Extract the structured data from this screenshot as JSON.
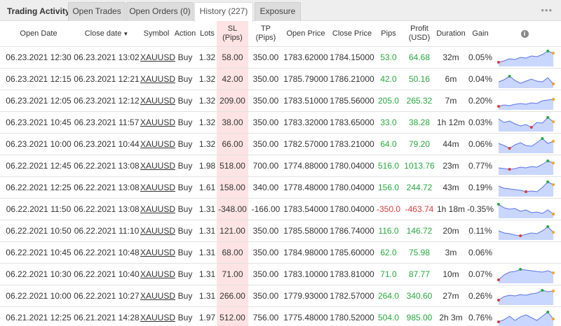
{
  "tabs": {
    "title": "Trading Activity",
    "items": [
      {
        "label": "Open Trades"
      },
      {
        "label": "Open Orders (0)"
      },
      {
        "label": "History (227)"
      },
      {
        "label": "Exposure"
      }
    ],
    "menu": "•••"
  },
  "columns": {
    "open_date": "Open Date",
    "close_date": "Close date",
    "sort_arrow": "▼",
    "symbol": "Symbol",
    "action": "Action",
    "lots": "Lots",
    "sl_1": "SL",
    "sl_2": "(Pips)",
    "tp_1": "TP",
    "tp_2": "(Pips)",
    "open_price": "Open Price",
    "close_price": "Close Price",
    "pips": "Pips",
    "profit_1": "Profit",
    "profit_2": "(USD)",
    "duration": "Duration",
    "gain": "Gain",
    "info": "i"
  },
  "colors": {
    "positive": "#27a83d",
    "negative": "#e03a3a",
    "sl_highlight": "#fde3e3",
    "spark_fill": "#c9d6ff",
    "spark_line": "#5c74e6"
  },
  "trades": [
    {
      "open_date": "06.23.2021 12:30",
      "close_date": "06.23.2021 13:02",
      "symbol": "XAUUSD",
      "action": "Buy",
      "lots": "1.32",
      "sl": "58.00",
      "tp": "350.00",
      "open_price": "1783.62000",
      "close_price": "1784.15000",
      "pips": "53.0",
      "profit": "64.68",
      "duration": "32m",
      "gain": "0.05%",
      "negative": false,
      "spark": [
        0.15,
        0.25,
        0.4,
        0.35,
        0.5,
        0.45,
        0.6,
        0.55,
        0.7,
        0.95,
        0.8
      ]
    },
    {
      "open_date": "06.23.2021 12:15",
      "close_date": "06.23.2021 12:21",
      "symbol": "XAUUSD",
      "action": "Buy",
      "lots": "1.32",
      "sl": "42.00",
      "tp": "350.00",
      "open_price": "1785.79000",
      "close_price": "1786.21000",
      "pips": "42.0",
      "profit": "50.16",
      "duration": "6m",
      "gain": "0.04%",
      "negative": false,
      "spark": [
        0.3,
        0.45,
        0.7,
        0.4,
        0.2,
        0.35,
        0.5,
        0.35,
        0.3,
        0.6,
        0.15
      ]
    },
    {
      "open_date": "06.23.2021 12:05",
      "close_date": "06.23.2021 12:12",
      "symbol": "XAUUSD",
      "action": "Buy",
      "lots": "1.32",
      "sl": "209.00",
      "tp": "350.00",
      "open_price": "1783.51000",
      "close_price": "1785.56000",
      "pips": "205.0",
      "profit": "265.32",
      "duration": "7m",
      "gain": "0.20%",
      "negative": false,
      "spark": [
        0.1,
        0.2,
        0.15,
        0.25,
        0.3,
        0.25,
        0.35,
        0.3,
        0.5,
        0.55,
        0.6
      ]
    },
    {
      "open_date": "06.23.2021 10:45",
      "close_date": "06.23.2021 11:57",
      "symbol": "XAUUSD",
      "action": "Buy",
      "lots": "1.32",
      "sl": "38.00",
      "tp": "350.00",
      "open_price": "1783.32000",
      "close_price": "1783.65000",
      "pips": "33.0",
      "profit": "38.28",
      "duration": "1h 12m",
      "gain": "0.03%",
      "negative": false,
      "spark": [
        0.75,
        0.5,
        0.6,
        0.4,
        0.25,
        0.35,
        0.15,
        0.5,
        0.45,
        0.85,
        0.55
      ]
    },
    {
      "open_date": "06.23.2021 10:00",
      "close_date": "06.23.2021 10:44",
      "symbol": "XAUUSD",
      "action": "Buy",
      "lots": "1.32",
      "sl": "66.00",
      "tp": "350.00",
      "open_price": "1782.57000",
      "close_price": "1783.21000",
      "pips": "64.0",
      "profit": "79.20",
      "duration": "44m",
      "gain": "0.06%",
      "negative": false,
      "spark": [
        0.55,
        0.4,
        0.2,
        0.45,
        0.6,
        0.4,
        0.35,
        0.6,
        0.9,
        0.55,
        0.7
      ]
    },
    {
      "open_date": "06.22.2021 12:45",
      "close_date": "06.22.2021 13:08",
      "symbol": "XAUUSD",
      "action": "Buy",
      "lots": "1.98",
      "sl": "518.00",
      "tp": "700.00",
      "open_price": "1774.88000",
      "close_price": "1780.04000",
      "pips": "516.0",
      "profit": "1013.76",
      "duration": "23m",
      "gain": "0.77%",
      "negative": false,
      "spark": [
        0.35,
        0.3,
        0.25,
        0.3,
        0.4,
        0.35,
        0.45,
        0.4,
        0.6,
        0.85,
        0.7
      ]
    },
    {
      "open_date": "06.22.2021 12:25",
      "close_date": "06.22.2021 13:08",
      "symbol": "XAUUSD",
      "action": "Buy",
      "lots": "1.61",
      "sl": "158.00",
      "tp": "340.00",
      "open_price": "1778.48000",
      "close_price": "1780.04000",
      "pips": "156.0",
      "profit": "244.72",
      "duration": "43m",
      "gain": "0.19%",
      "negative": false,
      "spark": [
        0.6,
        0.45,
        0.4,
        0.35,
        0.3,
        0.2,
        0.25,
        0.2,
        0.5,
        0.9,
        0.7
      ]
    },
    {
      "open_date": "06.22.2021 11:50",
      "close_date": "06.22.2021 13:08",
      "symbol": "XAUUSD",
      "action": "Buy",
      "lots": "1.31",
      "sl": "-348.00",
      "tp": "-166.00",
      "open_price": "1783.54000",
      "close_price": "1780.04000",
      "pips": "-350.0",
      "profit": "-463.74",
      "duration": "1h 18m",
      "gain": "-0.35%",
      "negative": true,
      "spark": [
        0.85,
        0.6,
        0.5,
        0.55,
        0.35,
        0.45,
        0.25,
        0.3,
        0.2,
        0.45,
        0.15
      ]
    },
    {
      "open_date": "06.22.2021 10:50",
      "close_date": "06.22.2021 11:10",
      "symbol": "XAUUSD",
      "action": "Buy",
      "lots": "1.31",
      "sl": "121.00",
      "tp": "350.00",
      "open_price": "1785.58000",
      "close_price": "1786.74000",
      "pips": "116.0",
      "profit": "146.72",
      "duration": "20m",
      "gain": "0.11%",
      "negative": false,
      "spark": [
        0.5,
        0.35,
        0.3,
        0.2,
        0.15,
        0.25,
        0.35,
        0.3,
        0.5,
        0.8,
        0.4
      ]
    },
    {
      "open_date": "06.22.2021 10:45",
      "close_date": "06.22.2021 10:48",
      "symbol": "XAUUSD",
      "action": "Buy",
      "lots": "1.31",
      "sl": "68.00",
      "tp": "350.00",
      "open_price": "1784.98000",
      "close_price": "1785.60000",
      "pips": "62.0",
      "profit": "75.98",
      "duration": "3m",
      "gain": "0.06%",
      "negative": false,
      "spark": []
    },
    {
      "open_date": "06.22.2021 10:30",
      "close_date": "06.22.2021 10:40",
      "symbol": "XAUUSD",
      "action": "Buy",
      "lots": "1.31",
      "sl": "71.00",
      "tp": "350.00",
      "open_price": "1783.10000",
      "close_price": "1783.81000",
      "pips": "71.0",
      "profit": "87.77",
      "duration": "10m",
      "gain": "0.07%",
      "negative": false,
      "spark": [
        0.1,
        0.45,
        0.65,
        0.7,
        0.85,
        0.8,
        0.75,
        0.7,
        0.65,
        0.75,
        0.6
      ]
    },
    {
      "open_date": "06.22.2021 10:00",
      "close_date": "06.22.2021 10:27",
      "symbol": "XAUUSD",
      "action": "Buy",
      "lots": "1.31",
      "sl": "266.00",
      "tp": "350.00",
      "open_price": "1779.93000",
      "close_price": "1782.57000",
      "pips": "264.0",
      "profit": "340.60",
      "duration": "27m",
      "gain": "0.26%",
      "negative": false,
      "spark": [
        0.2,
        0.45,
        0.55,
        0.5,
        0.6,
        0.55,
        0.65,
        0.7,
        0.9,
        0.8,
        0.85
      ]
    },
    {
      "open_date": "06.21.2021 12:25",
      "close_date": "06.21.2021 14:28",
      "symbol": "XAUUSD",
      "action": "Buy",
      "lots": "1.97",
      "sl": "512.00",
      "tp": "756.00",
      "open_price": "1775.48000",
      "close_price": "1780.52000",
      "pips": "504.0",
      "profit": "985.00",
      "duration": "2h 3m",
      "gain": "0.76%",
      "negative": false,
      "spark": [
        0.2,
        0.35,
        0.6,
        0.3,
        0.55,
        0.7,
        0.5,
        0.3,
        0.6,
        0.9,
        0.4
      ]
    }
  ]
}
